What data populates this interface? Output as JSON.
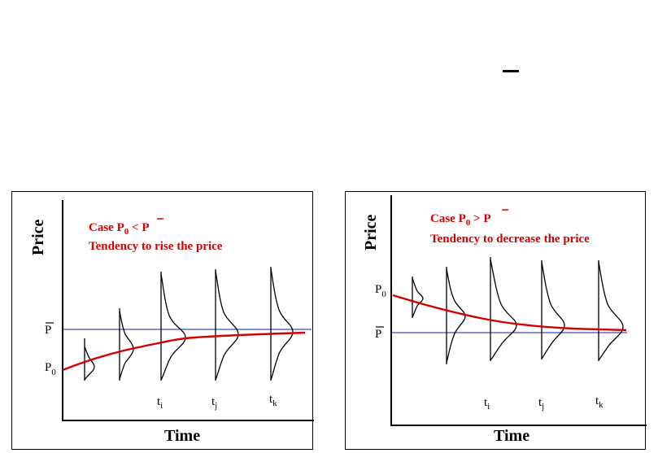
{
  "header": {
    "dash_glyph": "‾"
  },
  "panels": [
    {
      "id": "left",
      "ylabel": "Price",
      "xlabel": "Time",
      "case_prefix": "Case P",
      "case_sub": "0",
      "case_rel": " < ",
      "case_pbar": "P",
      "tendency": "Tendency to rise the price",
      "p0_label": "P",
      "p0_sub": "0",
      "pbar_label": "P",
      "time_labels": [
        {
          "t": "t",
          "sub": "i"
        },
        {
          "t": "t",
          "sub": "j"
        },
        {
          "t": "t",
          "sub": "k"
        }
      ],
      "trend": "rise"
    },
    {
      "id": "right",
      "ylabel": "Price",
      "xlabel": "Time",
      "case_prefix": "Case P",
      "case_sub": "0",
      "case_rel": " > ",
      "case_pbar": "P",
      "tendency": "Tendency to decrease the price",
      "p0_label": "P",
      "p0_sub": "0",
      "pbar_label": "P",
      "time_labels": [
        {
          "t": "t",
          "sub": "i"
        },
        {
          "t": "t",
          "sub": "j"
        },
        {
          "t": "t",
          "sub": "k"
        }
      ],
      "trend": "decrease"
    }
  ],
  "colors": {
    "trend_line": "#d40000",
    "equilibrium_line": "#1a1aa0",
    "axis": "#000000"
  }
}
